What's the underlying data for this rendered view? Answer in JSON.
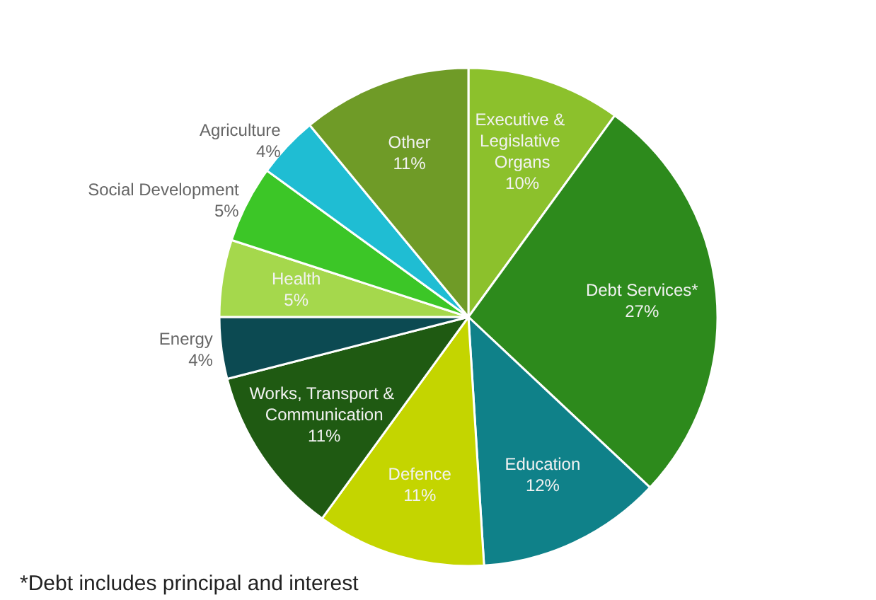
{
  "chart_data": {
    "type": "pie",
    "categories": [
      "Executive & Legislative Organs",
      "Debt Services*",
      "Education",
      "Defence",
      "Works, Transport & Communication",
      "Energy",
      "Health",
      "Social Development",
      "Agriculture",
      "Other"
    ],
    "values": [
      10,
      27,
      12,
      11,
      11,
      4,
      5,
      5,
      4,
      11
    ],
    "colors": [
      "#8cc12c",
      "#2d8a1c",
      "#0f8189",
      "#c4d500",
      "#1f5a12",
      "#0c4a52",
      "#a5d84c",
      "#3cc627",
      "#1fbdd3",
      "#6f9b27"
    ],
    "value_labels": [
      "10%",
      "27%",
      "12%",
      "11%",
      "11%",
      "4%",
      "5%",
      "5%",
      "4%",
      "11%"
    ],
    "annotations": [
      "*Debt includes principal and interest"
    ]
  }
}
